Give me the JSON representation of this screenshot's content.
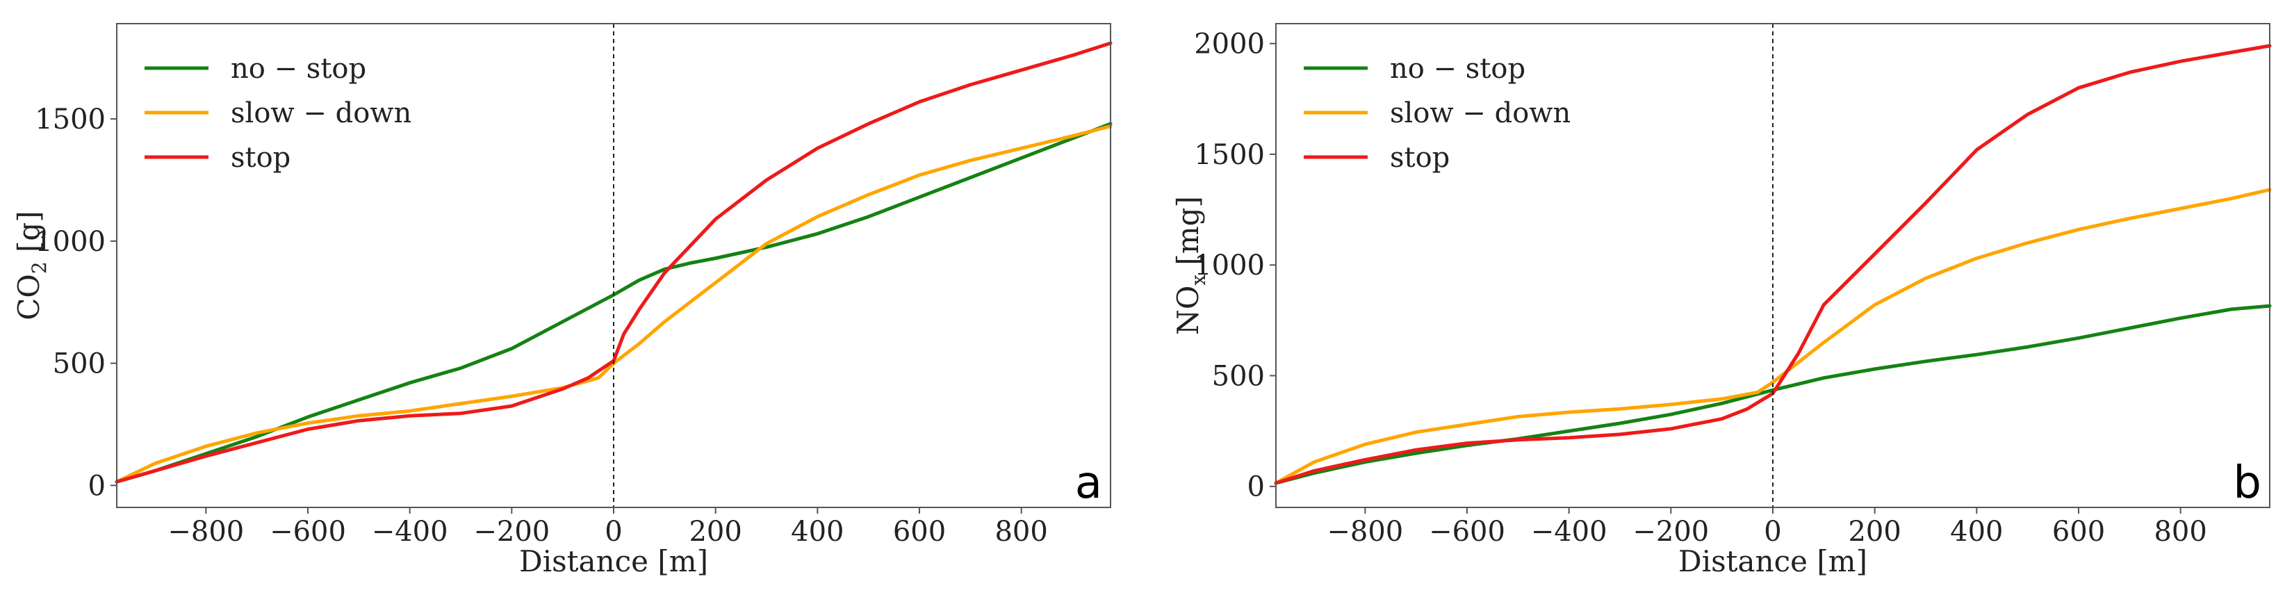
{
  "chart_data": [
    {
      "type": "line",
      "panel_letter": "a",
      "xlabel": "Distance [m]",
      "ylabel": "CO",
      "ylabel_sub": "2",
      "ylabel_unit": " [g]",
      "xlim": [
        -975,
        975
      ],
      "ylim": [
        -90,
        1890
      ],
      "xticks": [
        -800,
        -600,
        -400,
        -200,
        0,
        200,
        400,
        600,
        800
      ],
      "xtick_labels": [
        "−800",
        "−600",
        "−400",
        "−200",
        "0",
        "200",
        "400",
        "600",
        "800"
      ],
      "yticks": [
        0,
        500,
        1000,
        1500
      ],
      "ytick_labels": [
        "0",
        "500",
        "1000",
        "1500"
      ],
      "vline_x": 0,
      "legend_position": "top-left",
      "series": [
        {
          "name": "no − stop",
          "color": "#148214",
          "x": [
            -975,
            -900,
            -800,
            -700,
            -600,
            -500,
            -400,
            -300,
            -200,
            -100,
            0,
            50,
            100,
            150,
            200,
            300,
            400,
            500,
            600,
            700,
            800,
            900,
            975
          ],
          "y": [
            15,
            60,
            130,
            200,
            280,
            350,
            420,
            480,
            560,
            670,
            780,
            840,
            885,
            910,
            930,
            975,
            1030,
            1100,
            1180,
            1260,
            1340,
            1420,
            1480
          ]
        },
        {
          "name": "slow − down",
          "color": "#ffa500",
          "x": [
            -975,
            -900,
            -800,
            -700,
            -600,
            -500,
            -400,
            -300,
            -200,
            -100,
            -30,
            0,
            50,
            100,
            200,
            300,
            400,
            500,
            600,
            700,
            800,
            900,
            975
          ],
          "y": [
            15,
            90,
            160,
            215,
            255,
            285,
            305,
            335,
            365,
            400,
            440,
            500,
            580,
            670,
            830,
            990,
            1100,
            1190,
            1270,
            1330,
            1380,
            1430,
            1470
          ]
        },
        {
          "name": "stop",
          "color": "#ee1a1a",
          "x": [
            -975,
            -900,
            -800,
            -700,
            -600,
            -500,
            -400,
            -300,
            -200,
            -100,
            -50,
            0,
            20,
            50,
            100,
            150,
            200,
            300,
            400,
            500,
            600,
            700,
            800,
            900,
            975
          ],
          "y": [
            15,
            60,
            120,
            175,
            230,
            265,
            285,
            295,
            325,
            395,
            440,
            510,
            620,
            720,
            870,
            980,
            1090,
            1250,
            1380,
            1480,
            1570,
            1640,
            1700,
            1760,
            1810
          ]
        }
      ]
    },
    {
      "type": "line",
      "panel_letter": "b",
      "xlabel": "Distance [m]",
      "ylabel": "NO",
      "ylabel_sub": "x",
      "ylabel_unit": " [mg]",
      "xlim": [
        -975,
        975
      ],
      "ylim": [
        -95,
        2090
      ],
      "xticks": [
        -800,
        -600,
        -400,
        -200,
        0,
        200,
        400,
        600,
        800
      ],
      "xtick_labels": [
        "−800",
        "−600",
        "−400",
        "−200",
        "0",
        "200",
        "400",
        "600",
        "800"
      ],
      "yticks": [
        0,
        500,
        1000,
        1500,
        2000
      ],
      "ytick_labels": [
        "0",
        "500",
        "1000",
        "1500",
        "2000"
      ],
      "vline_x": 0,
      "legend_position": "top-left",
      "series": [
        {
          "name": "no − stop",
          "color": "#148214",
          "x": [
            -975,
            -900,
            -800,
            -700,
            -600,
            -500,
            -400,
            -300,
            -200,
            -100,
            0,
            100,
            200,
            300,
            400,
            500,
            600,
            700,
            800,
            900,
            975
          ],
          "y": [
            15,
            60,
            110,
            150,
            185,
            215,
            250,
            285,
            325,
            375,
            435,
            490,
            530,
            565,
            595,
            630,
            670,
            715,
            760,
            800,
            815
          ]
        },
        {
          "name": "slow − down",
          "color": "#ffa500",
          "x": [
            -975,
            -900,
            -800,
            -700,
            -600,
            -500,
            -400,
            -300,
            -200,
            -100,
            -30,
            0,
            100,
            200,
            300,
            400,
            500,
            600,
            700,
            800,
            900,
            975
          ],
          "y": [
            15,
            110,
            190,
            245,
            280,
            315,
            335,
            350,
            370,
            395,
            425,
            470,
            650,
            820,
            940,
            1030,
            1100,
            1160,
            1210,
            1255,
            1300,
            1340
          ]
        },
        {
          "name": "stop",
          "color": "#ee1a1a",
          "x": [
            -975,
            -900,
            -800,
            -700,
            -600,
            -500,
            -400,
            -300,
            -200,
            -100,
            -50,
            0,
            50,
            100,
            200,
            300,
            350,
            400,
            500,
            600,
            700,
            800,
            900,
            975
          ],
          "y": [
            15,
            70,
            120,
            165,
            195,
            210,
            220,
            235,
            260,
            305,
            350,
            420,
            600,
            820,
            1050,
            1280,
            1400,
            1520,
            1680,
            1800,
            1870,
            1920,
            1960,
            1990
          ]
        }
      ]
    }
  ]
}
